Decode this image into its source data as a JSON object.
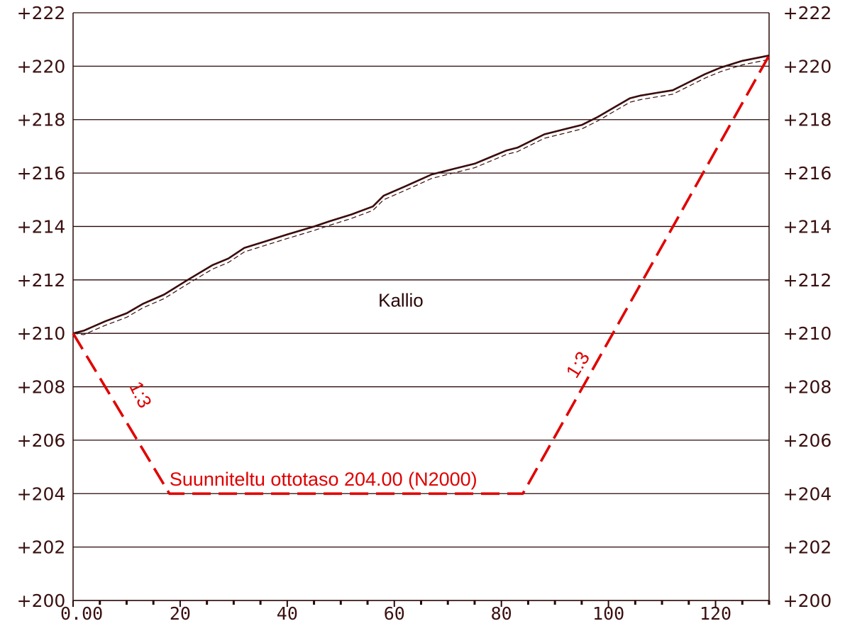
{
  "chart_data": {
    "type": "line",
    "x_ticks": [
      {
        "value": 0,
        "label": "0.00"
      },
      {
        "value": 20,
        "label": "20"
      },
      {
        "value": 40,
        "label": "40"
      },
      {
        "value": 60,
        "label": "60"
      },
      {
        "value": 80,
        "label": "80"
      },
      {
        "value": 100,
        "label": "100"
      },
      {
        "value": 120,
        "label": "120"
      }
    ],
    "y_ticks": [
      {
        "value": 200,
        "label": "+200"
      },
      {
        "value": 202,
        "label": "+202"
      },
      {
        "value": 204,
        "label": "+204"
      },
      {
        "value": 206,
        "label": "+206"
      },
      {
        "value": 208,
        "label": "+208"
      },
      {
        "value": 210,
        "label": "+210"
      },
      {
        "value": 212,
        "label": "+212"
      },
      {
        "value": 214,
        "label": "+214"
      },
      {
        "value": 216,
        "label": "+216"
      },
      {
        "value": 218,
        "label": "+218"
      },
      {
        "value": 220,
        "label": "+220"
      },
      {
        "value": 222,
        "label": "+222"
      }
    ],
    "xlim": [
      0,
      130
    ],
    "ylim": [
      200,
      222
    ],
    "grid": "horizontal",
    "series": [
      {
        "style": "solid",
        "color": "#3a0c0c",
        "x": [
          0,
          2,
          6,
          10,
          13,
          17,
          21,
          26,
          29,
          32,
          36,
          40,
          45,
          48,
          52,
          56,
          58,
          62,
          67,
          71,
          75,
          78,
          81,
          83,
          88,
          92,
          95,
          98,
          101,
          104,
          106,
          109,
          112,
          115,
          118,
          121,
          125,
          130
        ],
        "y": [
          210.0,
          210.1,
          210.45,
          210.75,
          211.1,
          211.45,
          211.95,
          212.55,
          212.8,
          213.2,
          213.45,
          213.7,
          214.0,
          214.2,
          214.45,
          214.75,
          215.15,
          215.5,
          215.95,
          216.15,
          216.35,
          216.6,
          216.85,
          216.95,
          217.45,
          217.65,
          217.8,
          218.1,
          218.45,
          218.8,
          218.9,
          219.0,
          219.1,
          219.4,
          219.7,
          219.95,
          220.2,
          220.4
        ]
      },
      {
        "style": "dashed",
        "color": "#3a0c0c",
        "x": [
          0,
          2,
          6,
          10,
          13,
          17,
          21,
          26,
          29,
          32,
          36,
          40,
          45,
          48,
          52,
          56,
          58,
          62,
          67,
          71,
          75,
          78,
          81,
          83,
          88,
          92,
          95,
          98,
          101,
          104,
          106,
          109,
          112,
          115,
          118,
          121,
          125,
          130
        ],
        "y": [
          210.0,
          209.95,
          210.3,
          210.6,
          210.95,
          211.3,
          211.8,
          212.4,
          212.65,
          213.05,
          213.3,
          213.55,
          213.85,
          214.05,
          214.3,
          214.6,
          215.0,
          215.35,
          215.8,
          216.0,
          216.2,
          216.45,
          216.7,
          216.8,
          217.3,
          217.5,
          217.65,
          217.95,
          218.3,
          218.65,
          218.75,
          218.85,
          218.95,
          219.25,
          219.55,
          219.8,
          220.05,
          220.25
        ]
      },
      {
        "style": "long-dash",
        "color": "#e00000",
        "x": [
          0,
          18,
          84,
          130
        ],
        "y": [
          210.0,
          204.0,
          204.0,
          220.4
        ]
      }
    ],
    "annotations": [
      {
        "text": "Kallio",
        "x": 57,
        "y": 211.0,
        "color": "dark",
        "rotate": 0
      },
      {
        "text": "Suunniteltu ottotaso 204.00 (N2000)",
        "x": 18,
        "y": 204.3,
        "color": "red",
        "rotate": 0
      },
      {
        "text": "1:3",
        "x": 11.5,
        "y": 207.6,
        "color": "red",
        "rotate": 64
      },
      {
        "text": "1:3",
        "x": 95.3,
        "y": 208.7,
        "color": "red",
        "rotate": -58
      }
    ]
  }
}
